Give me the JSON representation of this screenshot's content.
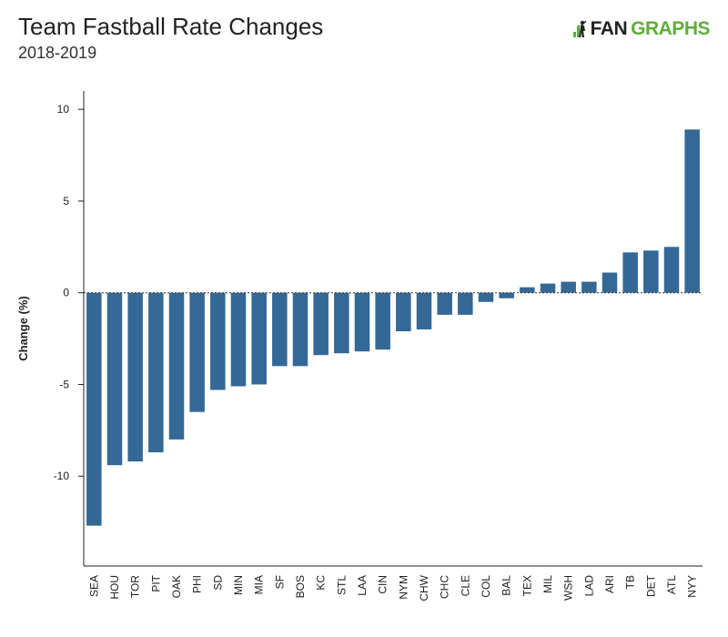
{
  "header": {
    "title": "Team Fastball Rate Changes",
    "subtitle": "2018-2019"
  },
  "logo": {
    "text_part1": "FAN",
    "text_part2": "GRAPHS",
    "icon": "batter-silhouette-icon",
    "accent_color": "#5fae3a"
  },
  "chart_data": {
    "type": "bar",
    "title": "Team Fastball Rate Changes",
    "subtitle": "2018-2019",
    "xlabel": "",
    "ylabel": "Change (%)",
    "ylim": [
      -14.9,
      11
    ],
    "yticks": [
      -10,
      -5,
      0,
      5,
      10
    ],
    "grid": false,
    "bar_color": "#346896",
    "categories": [
      "SEA",
      "HOU",
      "TOR",
      "PIT",
      "OAK",
      "PHI",
      "SD",
      "MIN",
      "MIA",
      "SF",
      "BOS",
      "KC",
      "STL",
      "LAA",
      "CIN",
      "NYM",
      "CHW",
      "CHC",
      "CLE",
      "COL",
      "BAL",
      "TEX",
      "MIL",
      "WSH",
      "LAD",
      "ARI",
      "TB",
      "DET",
      "ATL",
      "NYY"
    ],
    "values": [
      -12.7,
      -9.4,
      -9.2,
      -8.7,
      -8.0,
      -6.5,
      -5.3,
      -5.1,
      -5.0,
      -4.0,
      -4.0,
      -3.4,
      -3.3,
      -3.2,
      -3.1,
      -2.1,
      -2.0,
      -1.2,
      -1.2,
      -0.5,
      -0.3,
      0.3,
      0.5,
      0.6,
      0.6,
      1.1,
      2.2,
      2.3,
      2.5,
      8.9
    ]
  }
}
